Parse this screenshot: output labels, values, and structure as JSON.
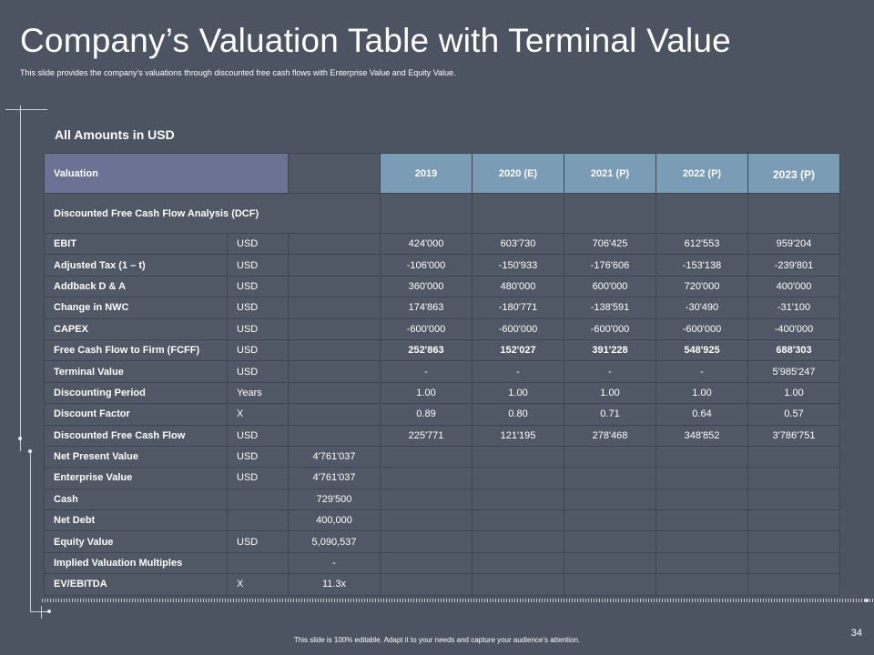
{
  "title": "Company’s Valuation Table with Terminal Value",
  "subtitle": "This slide provides the company's valuations through discounted free cash flows with Enterprise Value and Equity Value.",
  "amounts_label": "All Amounts in USD",
  "table": {
    "header": {
      "label": "Valuation",
      "years": [
        "2019",
        "2020 (E)",
        "2021 (P)",
        "2022 (P)",
        "2023 (P)"
      ]
    },
    "dcf_label": "Discounted Free Cash Flow Analysis (DCF)",
    "rows": [
      {
        "label": "EBIT",
        "unit": "USD",
        "summary": "",
        "values": [
          "424'000",
          "603'730",
          "706'425",
          "612'553",
          "959'204"
        ]
      },
      {
        "label": "Adjusted Tax (1 – t)",
        "unit": "USD",
        "summary": "",
        "values": [
          "-106'000",
          "-150'933",
          "-176'606",
          "-153'138",
          "-239'801"
        ]
      },
      {
        "label": "Addback D & A",
        "unit": "USD",
        "summary": "",
        "values": [
          "360'000",
          "480'000",
          "600'000",
          "720'000",
          "400'000"
        ]
      },
      {
        "label": "Change in NWC",
        "unit": "USD",
        "summary": "",
        "values": [
          "174'863",
          "-180'771",
          "-138'591",
          "-30'490",
          "-31'100"
        ]
      },
      {
        "label": "CAPEX",
        "unit": "USD",
        "summary": "",
        "values": [
          "-600'000",
          "-600'000",
          "-600'000",
          "-600'000",
          "-400'000"
        ]
      },
      {
        "label": "Free Cash Flow to Firm (FCFF)",
        "unit": "USD",
        "summary": "",
        "values": [
          "252'863",
          "152'027",
          "391'228",
          "548'925",
          "688'303"
        ]
      },
      {
        "label": "Terminal Value",
        "unit": "USD",
        "summary": "",
        "values": [
          "-",
          "-",
          "-",
          "-",
          "5'985'247"
        ]
      },
      {
        "label": "Discounting  Period",
        "unit": "Years",
        "summary": "",
        "values": [
          "1.00",
          "1.00",
          "1.00",
          "1.00",
          "1.00"
        ]
      },
      {
        "label": "Discount Factor",
        "unit": "X",
        "summary": "",
        "values": [
          "0.89",
          "0.80",
          "0.71",
          "0.64",
          "0.57"
        ]
      },
      {
        "label": "Discounted Free Cash Flow",
        "unit": "USD",
        "summary": "",
        "values": [
          "225'771",
          "121'195",
          "278'468",
          "348'852",
          "3'786'751"
        ]
      },
      {
        "label": "Net Present Value",
        "unit": "USD",
        "summary": "4'761'037",
        "values": [
          "",
          "",
          "",
          "",
          ""
        ]
      },
      {
        "label": "Enterprise Value",
        "unit": "USD",
        "summary": "4'761'037",
        "values": [
          "",
          "",
          "",
          "",
          ""
        ]
      },
      {
        "label": "Cash",
        "unit": "",
        "summary": "729'500",
        "values": [
          "",
          "",
          "",
          "",
          ""
        ]
      },
      {
        "label": "Net Debt",
        "unit": "",
        "summary": "400,000",
        "values": [
          "",
          "",
          "",
          "",
          ""
        ]
      },
      {
        "label": "Equity Value",
        "unit": "USD",
        "summary": "5,090,537",
        "values": [
          "",
          "",
          "",
          "",
          ""
        ]
      },
      {
        "label": "Implied Valuation Multiples",
        "unit": "",
        "summary": "-",
        "values": [
          "",
          "",
          "",
          "",
          ""
        ]
      },
      {
        "label": "EV/EBITDA",
        "unit": "X",
        "summary": "11.3x",
        "values": [
          "",
          "",
          "",
          "",
          ""
        ]
      }
    ]
  },
  "page_number": "34",
  "footer": "This slide is 100% editable. Adapt it to your needs and capture your audience’s attention."
}
